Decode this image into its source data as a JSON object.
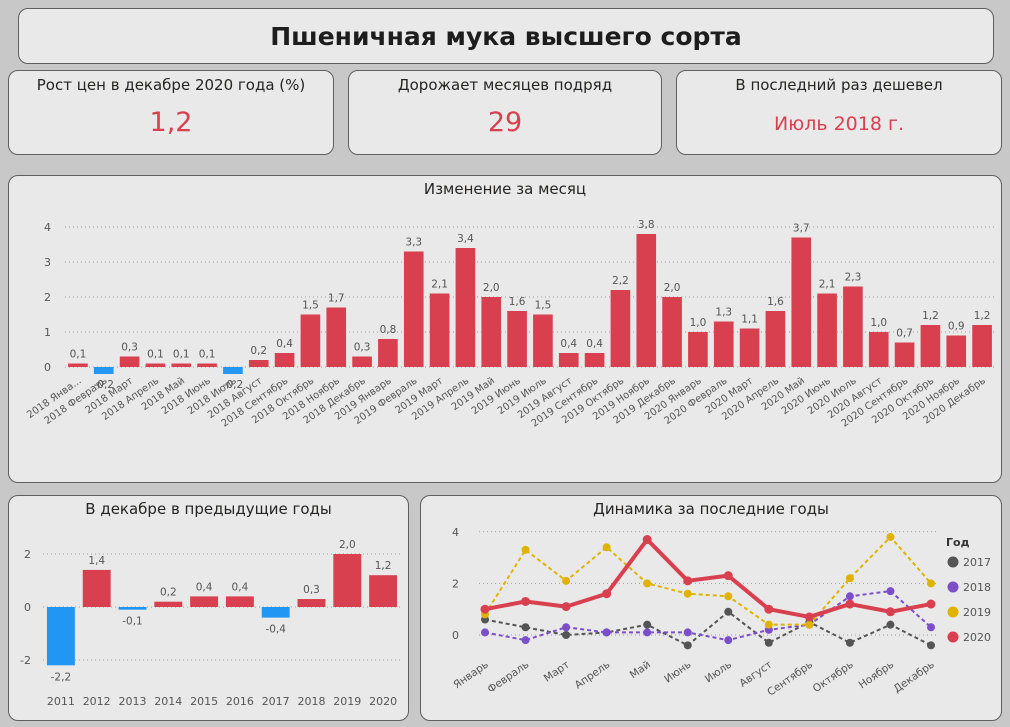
{
  "header": {
    "title": "Пшеничная мука высшего сорта"
  },
  "cards": [
    {
      "label": "Рост цен в декабре 2020 года (%)",
      "value": "1,2"
    },
    {
      "label": "Дорожает месяцев подряд",
      "value": "29"
    },
    {
      "label": "В последний раз дешевел",
      "value": "Июль 2018 г."
    }
  ],
  "colors": {
    "positive": "#d9404f",
    "negative": "#2196f3",
    "y2017": "#555555",
    "y2018": "#7b4fc9",
    "y2019": "#dfb300",
    "y2020": "#d9404f"
  },
  "chart_data": [
    {
      "type": "bar",
      "title": "Изменение за месяц",
      "categories": [
        "2018 Янва...",
        "2018 Февраль",
        "2018 Март",
        "2018 Апрель",
        "2018 Май",
        "2018 Июнь",
        "2018 Июль",
        "2018 Август",
        "2018 Сентябрь",
        "2018 Октябрь",
        "2018 Ноябрь",
        "2018 Декабрь",
        "2019 Январь",
        "2019 Февраль",
        "2019 Март",
        "2019 Апрель",
        "2019 Май",
        "2019 Июнь",
        "2019 Июль",
        "2019 Август",
        "2019 Сентябрь",
        "2019 Октябрь",
        "2019 Ноябрь",
        "2019 Декабрь",
        "2020 Январь",
        "2020 Февраль",
        "2020 Март",
        "2020 Апрель",
        "2020 Май",
        "2020 Июнь",
        "2020 Июль",
        "2020 Август",
        "2020 Сентябрь",
        "2020 Октябрь",
        "2020 Ноябрь",
        "2020 Декабрь"
      ],
      "values": [
        0.1,
        -0.2,
        0.3,
        0.1,
        0.1,
        0.1,
        -0.2,
        0.2,
        0.4,
        1.5,
        1.7,
        0.3,
        0.8,
        3.3,
        2.1,
        3.4,
        2.0,
        1.6,
        1.5,
        0.4,
        0.4,
        2.2,
        3.8,
        2.0,
        1.0,
        1.3,
        1.1,
        1.6,
        3.7,
        2.1,
        2.3,
        1.0,
        0.7,
        1.2,
        0.9,
        1.2
      ],
      "labels": [
        "0,1",
        "-0,2",
        "0,3",
        "0,1",
        "0,1",
        "0,1",
        "-0,2",
        "0,2",
        "0,4",
        "1,5",
        "1,7",
        "0,3",
        "0,8",
        "3,3",
        "2,1",
        "3,4",
        "2,0",
        "1,6",
        "1,5",
        "0,4",
        "0,4",
        "2,2",
        "3,8",
        "2,0",
        "1,0",
        "1,3",
        "1,1",
        "1,6",
        "3,7",
        "2,1",
        "2,3",
        "1,0",
        "0,7",
        "1,2",
        "0,9",
        "1,2"
      ],
      "yticks": [
        "0",
        "1",
        "2",
        "3",
        "4"
      ],
      "ylim": [
        -0.3,
        4.2
      ],
      "grid": true
    },
    {
      "type": "bar",
      "title": "В декабре в предыдущие годы",
      "categories": [
        "2011",
        "2012",
        "2013",
        "2014",
        "2015",
        "2016",
        "2017",
        "2018",
        "2019",
        "2020"
      ],
      "values": [
        -2.2,
        1.4,
        -0.1,
        0.2,
        0.4,
        0.4,
        -0.4,
        0.3,
        2.0,
        1.2
      ],
      "labels": [
        "-2,2",
        "1,4",
        "-0,1",
        "0,2",
        "0,4",
        "0,4",
        "-0,4",
        "0,3",
        "2,0",
        "1,2"
      ],
      "yticks": [
        "2",
        "0",
        "-2"
      ],
      "ylim": [
        -2.5,
        2.4
      ],
      "grid": true
    },
    {
      "type": "line",
      "title": "Динамика за последние годы",
      "categories": [
        "Январь",
        "Февраль",
        "Март",
        "Апрель",
        "Май",
        "Июнь",
        "Июль",
        "Август",
        "Сентябрь",
        "Октябрь",
        "Ноябрь",
        "Декабрь"
      ],
      "legend_title": "Год",
      "legend_position": "right",
      "yticks": [
        "4",
        "2",
        "0"
      ],
      "ylim": [
        -0.6,
        4.1
      ],
      "series": [
        {
          "name": "2017",
          "values": [
            0.6,
            0.3,
            0.0,
            0.1,
            0.4,
            -0.4,
            0.9,
            -0.3,
            0.5,
            -0.3,
            0.4,
            -0.4
          ]
        },
        {
          "name": "2018",
          "values": [
            0.1,
            -0.2,
            0.3,
            0.1,
            0.1,
            0.1,
            -0.2,
            0.2,
            0.4,
            1.5,
            1.7,
            0.3
          ]
        },
        {
          "name": "2019",
          "values": [
            0.8,
            3.3,
            2.1,
            3.4,
            2.0,
            1.6,
            1.5,
            0.4,
            0.4,
            2.2,
            3.8,
            2.0
          ]
        },
        {
          "name": "2020",
          "values": [
            1.0,
            1.3,
            1.1,
            1.6,
            3.7,
            2.1,
            2.3,
            1.0,
            0.7,
            1.2,
            0.9,
            1.2
          ]
        }
      ]
    }
  ]
}
